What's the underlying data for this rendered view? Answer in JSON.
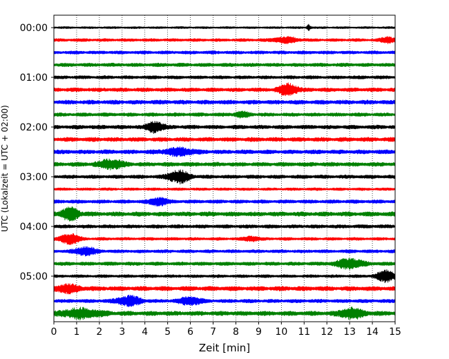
{
  "chart_data": {
    "type": "line",
    "subtype": "helicorder",
    "title": "",
    "xlabel": "Zeit  [min]",
    "ylabel": "UTC (Lokalzeit = UTC + 02:00)",
    "xlim": [
      0,
      15
    ],
    "x_ticks": [
      "0",
      "1",
      "2",
      "3",
      "4",
      "5",
      "6",
      "7",
      "8",
      "9",
      "10",
      "11",
      "12",
      "13",
      "14",
      "15"
    ],
    "y_ticks": [
      "00:00",
      "01:00",
      "02:00",
      "03:00",
      "04:00",
      "05:00"
    ],
    "row_interval_min": 15,
    "grid": "x-dotted",
    "colors": [
      "#000000",
      "#ff0000",
      "#0000ff",
      "#008000"
    ],
    "series": [
      {
        "name": "00:00",
        "color": "#000000",
        "amplitude": 0.14,
        "events": [
          {
            "t": 11.2,
            "amp": 0.45,
            "width": 0.08
          }
        ]
      },
      {
        "name": "00:15",
        "color": "#ff0000",
        "amplitude": 0.2,
        "events": [
          {
            "t": 10.2,
            "amp": 0.45,
            "width": 0.5
          },
          {
            "t": 14.7,
            "amp": 0.4,
            "width": 0.3
          }
        ]
      },
      {
        "name": "00:30",
        "color": "#0000ff",
        "amplitude": 0.22,
        "events": []
      },
      {
        "name": "00:45",
        "color": "#008000",
        "amplitude": 0.24,
        "events": []
      },
      {
        "name": "01:00",
        "color": "#000000",
        "amplitude": 0.22,
        "events": []
      },
      {
        "name": "01:15",
        "color": "#ff0000",
        "amplitude": 0.26,
        "events": [
          {
            "t": 10.3,
            "amp": 0.9,
            "width": 0.4
          }
        ]
      },
      {
        "name": "01:30",
        "color": "#0000ff",
        "amplitude": 0.28,
        "events": []
      },
      {
        "name": "01:45",
        "color": "#008000",
        "amplitude": 0.24,
        "events": [
          {
            "t": 8.3,
            "amp": 0.4,
            "width": 0.3
          }
        ]
      },
      {
        "name": "02:00",
        "color": "#000000",
        "amplitude": 0.26,
        "events": [
          {
            "t": 4.45,
            "amp": 0.85,
            "width": 0.35
          }
        ]
      },
      {
        "name": "02:15",
        "color": "#ff0000",
        "amplitude": 0.28,
        "events": []
      },
      {
        "name": "02:30",
        "color": "#0000ff",
        "amplitude": 0.28,
        "events": [
          {
            "t": 5.5,
            "amp": 0.55,
            "width": 0.6
          }
        ]
      },
      {
        "name": "02:45",
        "color": "#008000",
        "amplitude": 0.28,
        "events": [
          {
            "t": 2.5,
            "amp": 0.7,
            "width": 0.5
          }
        ]
      },
      {
        "name": "03:00",
        "color": "#000000",
        "amplitude": 0.24,
        "events": [
          {
            "t": 5.5,
            "amp": 0.95,
            "width": 0.45
          }
        ]
      },
      {
        "name": "03:15",
        "color": "#ff0000",
        "amplitude": 0.18,
        "events": []
      },
      {
        "name": "03:30",
        "color": "#0000ff",
        "amplitude": 0.24,
        "events": [
          {
            "t": 4.6,
            "amp": 0.6,
            "width": 0.35
          }
        ]
      },
      {
        "name": "03:45",
        "color": "#008000",
        "amplitude": 0.3,
        "events": [
          {
            "t": 0.7,
            "amp": 0.9,
            "width": 0.4
          }
        ]
      },
      {
        "name": "04:00",
        "color": "#000000",
        "amplitude": 0.24,
        "events": []
      },
      {
        "name": "04:15",
        "color": "#ff0000",
        "amplitude": 0.2,
        "events": [
          {
            "t": 0.7,
            "amp": 0.8,
            "width": 0.4
          },
          {
            "t": 8.7,
            "amp": 0.35,
            "width": 0.3
          }
        ]
      },
      {
        "name": "04:30",
        "color": "#0000ff",
        "amplitude": 0.22,
        "events": [
          {
            "t": 1.4,
            "amp": 0.6,
            "width": 0.45
          }
        ]
      },
      {
        "name": "04:45",
        "color": "#008000",
        "amplitude": 0.24,
        "events": [
          {
            "t": 13.0,
            "amp": 0.75,
            "width": 0.55
          }
        ]
      },
      {
        "name": "05:00",
        "color": "#000000",
        "amplitude": 0.2,
        "events": [
          {
            "t": 14.6,
            "amp": 0.85,
            "width": 0.4
          }
        ]
      },
      {
        "name": "05:15",
        "color": "#ff0000",
        "amplitude": 0.3,
        "events": [
          {
            "t": 0.6,
            "amp": 0.55,
            "width": 0.5
          }
        ]
      },
      {
        "name": "05:30",
        "color": "#0000ff",
        "amplitude": 0.24,
        "events": [
          {
            "t": 3.3,
            "amp": 0.75,
            "width": 0.5
          },
          {
            "t": 6.0,
            "amp": 0.6,
            "width": 0.45
          }
        ]
      },
      {
        "name": "05:45",
        "color": "#008000",
        "amplitude": 0.3,
        "events": [
          {
            "t": 1.2,
            "amp": 0.7,
            "width": 0.8
          },
          {
            "t": 13.1,
            "amp": 0.75,
            "width": 0.5
          }
        ]
      }
    ]
  }
}
